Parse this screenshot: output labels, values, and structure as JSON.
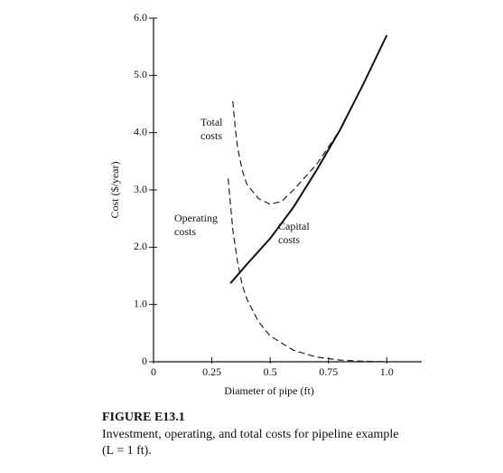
{
  "chart_data": {
    "type": "line",
    "xlabel": "Diameter of pipe (ft)",
    "ylabel": "Cost ($/year)",
    "xlim": [
      0,
      1.15
    ],
    "ylim": [
      0,
      6
    ],
    "xticks": [
      0,
      0.25,
      {
        "value": 0.5,
        "label": "0.5"
      },
      0.75,
      {
        "value": 1,
        "label": "1.0"
      }
    ],
    "yticks": [
      {
        "value": 0,
        "label": "0"
      },
      {
        "value": 1,
        "label": "1.0"
      },
      {
        "value": 2,
        "label": "2.0"
      },
      {
        "value": 3,
        "label": "3.0"
      },
      {
        "value": 4,
        "label": "4.0"
      },
      {
        "value": 5,
        "label": "5.0"
      },
      {
        "value": 6,
        "label": "6.0"
      }
    ],
    "series": [
      {
        "label_lines": [
          "Total",
          "costs"
        ],
        "color": "#222",
        "dashed": true,
        "x": [
          0.34,
          0.35,
          0.36,
          0.38,
          0.4,
          0.45,
          0.5,
          0.55,
          0.6,
          0.7,
          0.8,
          0.83
        ],
        "values": [
          4.55,
          4.1,
          3.75,
          3.35,
          3.1,
          2.85,
          2.75,
          2.8,
          3.0,
          3.45,
          4.05,
          4.3
        ]
      },
      {
        "label_lines": [
          "Operating",
          "costs"
        ],
        "color": "#222",
        "dashed": true,
        "x": [
          0.32,
          0.34,
          0.36,
          0.38,
          0.4,
          0.45,
          0.5,
          0.6,
          0.7,
          0.8,
          0.9,
          1.0
        ],
        "values": [
          3.2,
          2.3,
          1.75,
          1.35,
          1.1,
          0.7,
          0.45,
          0.2,
          0.08,
          0.03,
          0.01,
          0.0
        ]
      },
      {
        "label_lines": [
          "Capital",
          "costs"
        ],
        "color": "#111",
        "dashed": false,
        "x": [
          0.33,
          0.4,
          0.5,
          0.6,
          0.7,
          0.8,
          0.9,
          1.0
        ],
        "values": [
          1.37,
          1.7,
          2.15,
          2.7,
          3.35,
          4.05,
          4.85,
          5.7
        ]
      }
    ],
    "caption": {
      "heading": "FIGURE E13.1",
      "lines": [
        "Investment, operating, and total costs for pipeline example",
        "(L = 1 ft)."
      ]
    }
  }
}
